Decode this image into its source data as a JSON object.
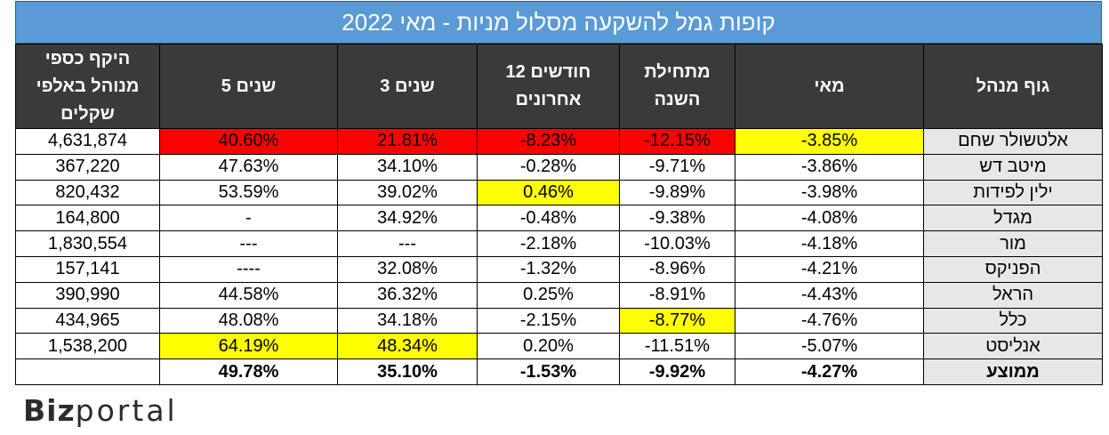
{
  "title": "קופות גמל להשקעה מסלול מניות - מאי 2022",
  "headers": {
    "aum": "היקף כספי מנוהל באלפי שקלים",
    "y5": "5 שנים",
    "y3": "3 שנים",
    "m12": "12 חודשים אחרונים",
    "ytd": "מתחילת השנה",
    "may": "מאי",
    "manager": "גוף מנהל"
  },
  "rows": [
    {
      "aum": "4,631,874",
      "y5": "40.60%",
      "y3": "21.81%",
      "m12": "-8.23%",
      "ytd": "-12.15%",
      "may": "-3.85%",
      "manager": "אלטשולר שחם"
    },
    {
      "aum": "367,220",
      "y5": "47.63%",
      "y3": "34.10%",
      "m12": "-0.28%",
      "ytd": "-9.71%",
      "may": "-3.86%",
      "manager": "מיטב דש"
    },
    {
      "aum": "820,432",
      "y5": "53.59%",
      "y3": "39.02%",
      "m12": "0.46%",
      "ytd": "-9.89%",
      "may": "-3.98%",
      "manager": "ילין לפידות"
    },
    {
      "aum": "164,800",
      "y5": "-",
      "y3": "34.92%",
      "m12": "-0.48%",
      "ytd": "-9.38%",
      "may": "-4.08%",
      "manager": "מגדל"
    },
    {
      "aum": "1,830,554",
      "y5": "---",
      "y3": "---",
      "m12": "-2.18%",
      "ytd": "-10.03%",
      "may": "-4.18%",
      "manager": "מור"
    },
    {
      "aum": "157,141",
      "y5": "----",
      "y3": "32.08%",
      "m12": "-1.32%",
      "ytd": "-8.96%",
      "may": "-4.21%",
      "manager": "הפניקס"
    },
    {
      "aum": "390,990",
      "y5": "44.58%",
      "y3": "36.32%",
      "m12": "0.25%",
      "ytd": "-8.91%",
      "may": "-4.43%",
      "manager": "הראל"
    },
    {
      "aum": "434,965",
      "y5": "48.08%",
      "y3": "34.18%",
      "m12": "-2.15%",
      "ytd": "-8.77%",
      "may": "-4.76%",
      "manager": "כלל"
    },
    {
      "aum": "1,538,200",
      "y5": "64.19%",
      "y3": "48.34%",
      "m12": "0.20%",
      "ytd": "-11.51%",
      "may": "-5.07%",
      "manager": "אנליסט"
    }
  ],
  "average": {
    "aum": "",
    "y5": "49.78%",
    "y3": "35.10%",
    "m12": "-1.53%",
    "ytd": "-9.92%",
    "may": "-4.27%",
    "manager": "ממוצע"
  },
  "highlights": {
    "red": "#ff0000",
    "yellow": "#ffff00"
  },
  "logo": {
    "part1": "Biz",
    "part2": "portal"
  }
}
